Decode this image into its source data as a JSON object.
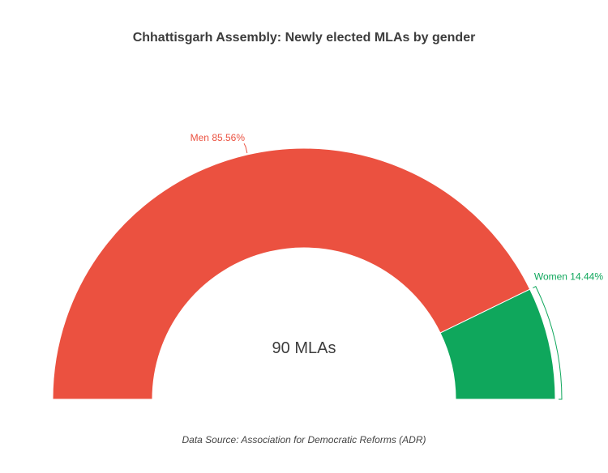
{
  "chart_data": {
    "type": "pie",
    "variant": "semi-donut",
    "title": "Chhattisgarh Assembly: Newly elected MLAs by gender",
    "center_label": "90 MLAs",
    "source": "Data Source: Association for Democratic Reforms (ADR)",
    "slices": [
      {
        "label": "Men 85.56%",
        "name": "Men",
        "value": 85.56,
        "color": "#eb5140"
      },
      {
        "label": "Women 14.44%",
        "name": "Women",
        "value": 14.44,
        "color": "#0fa75c"
      }
    ]
  }
}
